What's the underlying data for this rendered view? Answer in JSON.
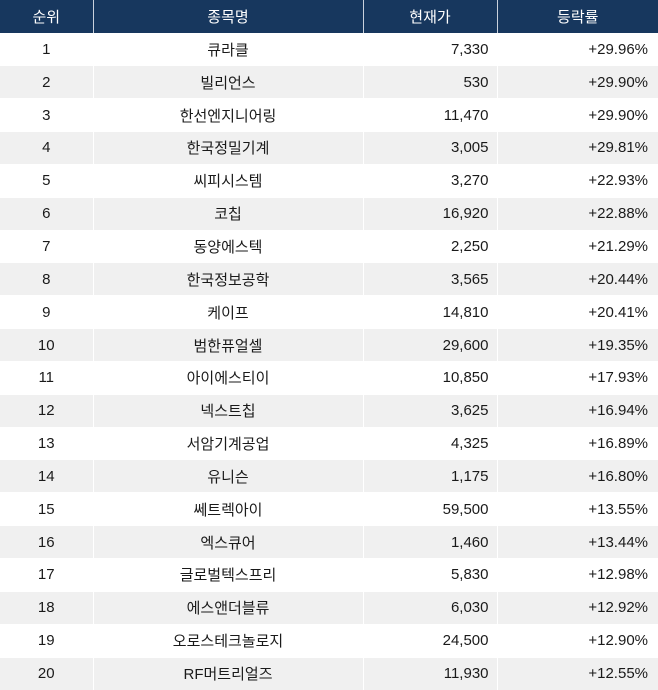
{
  "table": {
    "colors": {
      "header_bg": "#17375e",
      "header_text": "#ffffff",
      "row_bg": "#ffffff",
      "row_alt_bg": "#f0f0f0",
      "body_text": "#1a1a1a"
    },
    "columns": [
      {
        "label": "순위"
      },
      {
        "label": "종목명"
      },
      {
        "label": "현재가"
      },
      {
        "label": "등락률"
      }
    ],
    "rows": [
      {
        "rank": "1",
        "name": "큐라클",
        "price": "7,330",
        "change": "+29.96%"
      },
      {
        "rank": "2",
        "name": "빌리언스",
        "price": "530",
        "change": "+29.90%"
      },
      {
        "rank": "3",
        "name": "한선엔지니어링",
        "price": "11,470",
        "change": "+29.90%"
      },
      {
        "rank": "4",
        "name": "한국정밀기계",
        "price": "3,005",
        "change": "+29.81%"
      },
      {
        "rank": "5",
        "name": "씨피시스템",
        "price": "3,270",
        "change": "+22.93%"
      },
      {
        "rank": "6",
        "name": "코칩",
        "price": "16,920",
        "change": "+22.88%"
      },
      {
        "rank": "7",
        "name": "동양에스텍",
        "price": "2,250",
        "change": "+21.29%"
      },
      {
        "rank": "8",
        "name": "한국정보공학",
        "price": "3,565",
        "change": "+20.44%"
      },
      {
        "rank": "9",
        "name": "케이프",
        "price": "14,810",
        "change": "+20.41%"
      },
      {
        "rank": "10",
        "name": "범한퓨얼셀",
        "price": "29,600",
        "change": "+19.35%"
      },
      {
        "rank": "11",
        "name": "아이에스티이",
        "price": "10,850",
        "change": "+17.93%"
      },
      {
        "rank": "12",
        "name": "넥스트칩",
        "price": "3,625",
        "change": "+16.94%"
      },
      {
        "rank": "13",
        "name": "서암기계공업",
        "price": "4,325",
        "change": "+16.89%"
      },
      {
        "rank": "14",
        "name": "유니슨",
        "price": "1,175",
        "change": "+16.80%"
      },
      {
        "rank": "15",
        "name": "쎄트렉아이",
        "price": "59,500",
        "change": "+13.55%"
      },
      {
        "rank": "16",
        "name": "엑스큐어",
        "price": "1,460",
        "change": "+13.44%"
      },
      {
        "rank": "17",
        "name": "글로벌텍스프리",
        "price": "5,830",
        "change": "+12.98%"
      },
      {
        "rank": "18",
        "name": "에스앤더블류",
        "price": "6,030",
        "change": "+12.92%"
      },
      {
        "rank": "19",
        "name": "오로스테크놀로지",
        "price": "24,500",
        "change": "+12.90%"
      },
      {
        "rank": "20",
        "name": "RF머트리얼즈",
        "price": "11,930",
        "change": "+12.55%"
      }
    ]
  }
}
